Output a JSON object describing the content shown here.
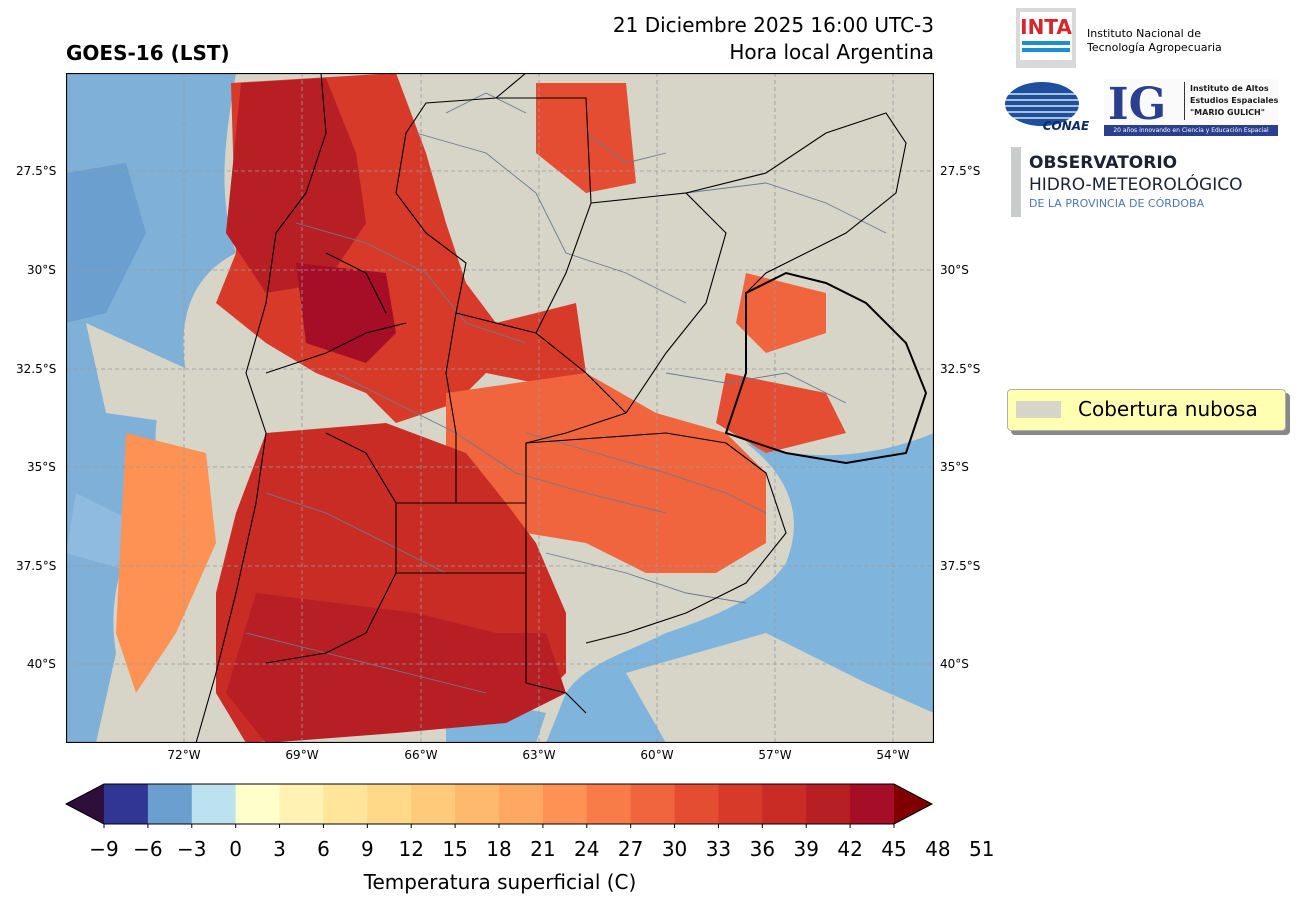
{
  "header": {
    "title": "GOES-16 (LST)",
    "datetime_line1": "21 Diciembre 2025 16:00 UTC-3",
    "datetime_line2": "Hora local Argentina"
  },
  "map": {
    "lat_labels": [
      "27.5°S",
      "30°S",
      "32.5°S",
      "35°S",
      "37.5°S",
      "40°S"
    ],
    "lon_labels": [
      "72°W",
      "69°W",
      "66°W",
      "63°W",
      "60°W",
      "57°W",
      "54°W"
    ],
    "colors": {
      "cloud": "#d6d5c8",
      "background": "#d6d5c8",
      "grid": "#a0a0a0",
      "border": "#000000",
      "dept": "#6b7a8f"
    }
  },
  "legend": {
    "label": "Cobertura nubosa"
  },
  "colorbar": {
    "title": "Temperatura superficial (C)",
    "ticks": [
      "−9",
      "−6",
      "−3",
      "0",
      "3",
      "6",
      "9",
      "12",
      "15",
      "18",
      "21",
      "24",
      "27",
      "30",
      "33",
      "36",
      "39",
      "42",
      "45",
      "48",
      "51"
    ],
    "colors": [
      "#313695",
      "#6a9fd0",
      "#bde2ef",
      "#ffffcc",
      "#fff2b2",
      "#ffe599",
      "#ffd987",
      "#ffcb7b",
      "#feb96d",
      "#fea862",
      "#fd9254",
      "#f97b48",
      "#f0653d",
      "#e54d33",
      "#d83a2a",
      "#c92c25",
      "#b71f25",
      "#a50e26"
    ],
    "under_color": "#2e0f3c",
    "over_color": "#800000"
  },
  "logos": {
    "inta": "INTA",
    "inta_text_1": "Instituto Nacional de",
    "inta_text_2": "Tecnología Agropecuaria",
    "conae": "CONAE",
    "ig": "IG",
    "ig_text_1": "Instituto de Altos",
    "ig_text_2": "Estudios Espaciales",
    "ig_text_3": "\"MARIO GULICH\"",
    "ig_text_4": "20 años innovando en Ciencia y Educación Espacial",
    "obs_1": "OBSERVATORIO",
    "obs_2": "HIDRO-METEOROLÓGICO",
    "obs_3": "DE LA PROVINCIA DE CÓRDOBA"
  }
}
